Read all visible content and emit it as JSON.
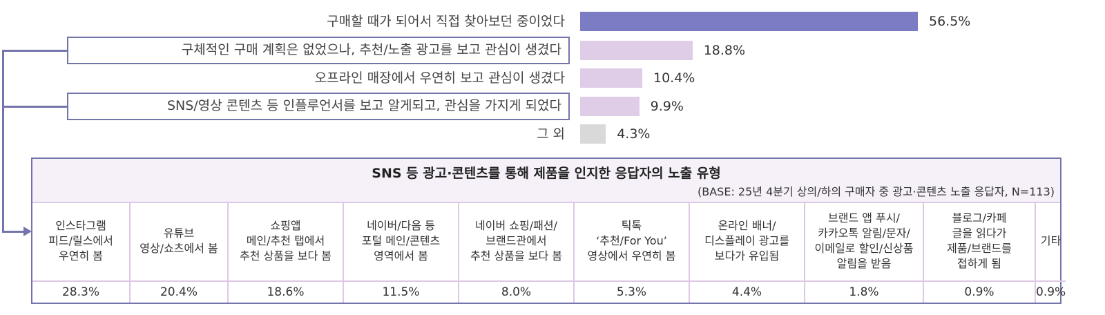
{
  "chart_data": {
    "type": "bar",
    "orientation": "horizontal",
    "categories": [
      "구매할 때가 되어서 직접 찾아보던 중이었다",
      "구체적인 구매 계획은 없었으나, 추천/노출 광고를 보고 관심이 생겼다",
      "오프라인 매장에서 우연히 보고 관심이 생겼다",
      "SNS/영상 콘텐츠 등 인플루언서를 보고 알게되고, 관심을 가지게 되었다",
      "그 외"
    ],
    "values": [
      56.5,
      18.8,
      10.4,
      9.9,
      4.3
    ],
    "value_labels": [
      "56.5%",
      "18.8%",
      "10.4%",
      "9.9%",
      "4.3%"
    ],
    "highlighted": [
      false,
      true,
      false,
      true,
      false
    ],
    "colors": [
      "#7b7cc4",
      "#dfcce6",
      "#dfcce6",
      "#dfcce6",
      "#d9d9d9"
    ],
    "xlim": [
      0,
      60
    ]
  },
  "table": {
    "title": "SNS 등 광고·콘텐츠를 통해 제품을 인지한 응답자의 노출 유형",
    "base": "(BASE: 25년 4분기 상의/하의 구매자 중 광고·콘텐츠 노출 응답자, N=113)",
    "columns": [
      {
        "header": "인스타그램\n피드/릴스에서\n우연히 봄",
        "value": "28.3%"
      },
      {
        "header": "유튜브\n영상/쇼츠에서 봄",
        "value": "20.4%"
      },
      {
        "header": "쇼핑앱\n메인/추천 탭에서\n추천 상품을 보다 봄",
        "value": "18.6%"
      },
      {
        "header": "네이버/다음 등\n포털 메인/콘텐츠\n영역에서 봄",
        "value": "11.5%"
      },
      {
        "header": "네이버 쇼핑/패션/\n브랜드관에서\n추천 상품을 보다 봄",
        "value": "8.0%"
      },
      {
        "header": "틱톡\n‘추천/For You’\n영상에서 우연히 봄",
        "value": "5.3%"
      },
      {
        "header": "온라인 배너/\n디스플레이 광고를\n보다가 유입됨",
        "value": "4.4%"
      },
      {
        "header": "브랜드 앱 푸시/\n카카오톡 알림/문자/\n이메일로 할인/신상품\n알림을 받음",
        "value": "1.8%"
      },
      {
        "header": "블로그/카페\n글을 읽다가\n제품/브랜드를\n접하게 됨",
        "value": "0.9%"
      },
      {
        "header": "기타",
        "value": "0.9%"
      }
    ],
    "border_color": "#7474ac"
  }
}
